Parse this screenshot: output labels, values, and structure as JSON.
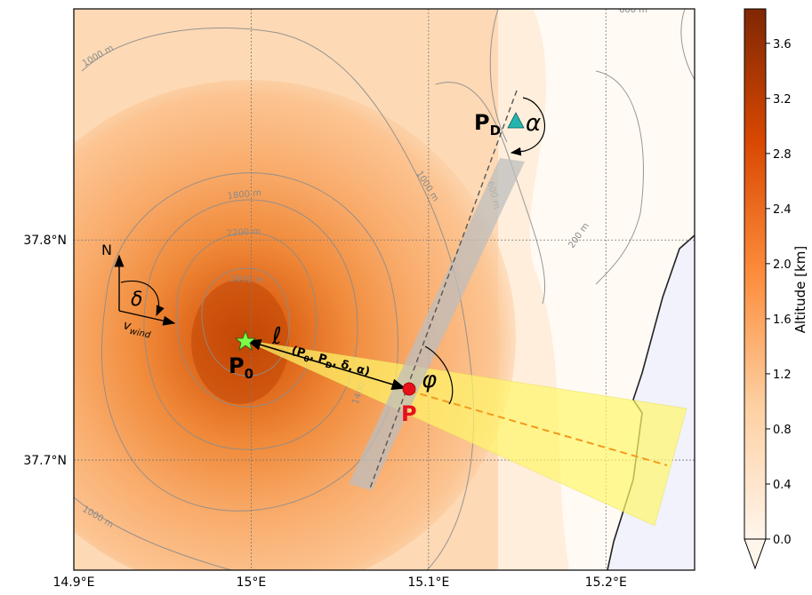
{
  "map": {
    "lon_ticks": [
      {
        "value": 14.9,
        "label": "14.9°E"
      },
      {
        "value": 15.0,
        "label": "15°E"
      },
      {
        "value": 15.1,
        "label": "15.1°E"
      },
      {
        "value": 15.2,
        "label": "15.2°E"
      }
    ],
    "lat_ticks": [
      {
        "value": 37.8,
        "label": "37.8°N"
      },
      {
        "value": 37.7,
        "label": "37.7°N"
      }
    ],
    "lon_range": [
      14.9,
      15.25
    ],
    "lat_range": [
      37.65,
      37.905
    ],
    "grid": true
  },
  "contours": {
    "labels": [
      "1000 m",
      "1800 m",
      "2200 m",
      "2600 m",
      "1000 m",
      "600 m",
      "200 m",
      "1400",
      "1000 m",
      "600 m"
    ]
  },
  "points": {
    "p0": {
      "label": "P",
      "sub": "0",
      "lon": 14.998,
      "lat": 37.752
    },
    "p": {
      "label": "P",
      "lon": 15.09,
      "lat": 37.731
    },
    "pd": {
      "label": "P",
      "sub": "D",
      "lon": 15.15,
      "lat": 37.854
    }
  },
  "annotations": {
    "north": "N",
    "delta": "δ",
    "alpha": "α",
    "phi": "φ",
    "wind_v": "v",
    "wind_sub": "wind",
    "ell": "ℓ",
    "ell_args": "(P",
    "ell_args_0": "0",
    "ell_args_mid": ", P",
    "ell_args_d": "D",
    "ell_args_end": ", δ, α)"
  },
  "colorbar": {
    "label": "Altitude [km]",
    "range": [
      0.0,
      3.85
    ],
    "ticks": [
      "0.0",
      "0.4",
      "0.8",
      "1.2",
      "1.6",
      "2.0",
      "2.4",
      "2.8",
      "3.2",
      "3.6"
    ],
    "colors": [
      "#fff5eb",
      "#fdd0a2",
      "#fd8d3c",
      "#d94801",
      "#7f2704"
    ]
  }
}
